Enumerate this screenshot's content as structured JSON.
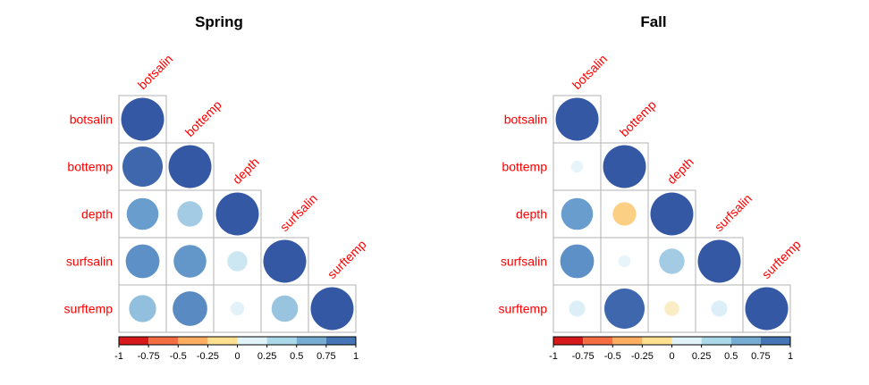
{
  "chart_data": [
    {
      "type": "heatmap",
      "title": "Spring",
      "variables": [
        "botsalin",
        "bottemp",
        "depth",
        "surfsalin",
        "surftemp"
      ],
      "matrix": [
        [
          1.0,
          0.88,
          0.55,
          0.62,
          0.4
        ],
        [
          0.88,
          1.0,
          0.35,
          0.58,
          0.65
        ],
        [
          0.55,
          0.35,
          1.0,
          0.22,
          0.1
        ],
        [
          0.62,
          0.58,
          0.22,
          1.0,
          0.38
        ],
        [
          0.4,
          0.65,
          0.1,
          0.38,
          1.0
        ]
      ]
    },
    {
      "type": "heatmap",
      "title": "Fall",
      "variables": [
        "botsalin",
        "bottemp",
        "depth",
        "surfsalin",
        "surftemp"
      ],
      "matrix": [
        [
          1.0,
          0.08,
          0.55,
          0.62,
          0.14
        ],
        [
          0.08,
          1.0,
          -0.3,
          0.08,
          0.88
        ],
        [
          0.55,
          -0.3,
          1.0,
          0.35,
          -0.12
        ],
        [
          0.62,
          0.08,
          0.35,
          1.0,
          0.14
        ],
        [
          0.14,
          0.88,
          -0.12,
          0.14,
          1.0
        ]
      ]
    }
  ],
  "colorbar": {
    "ticks": [
      "-1",
      "-0.75",
      "-0.5",
      "-0.25",
      "0",
      "0.25",
      "0.5",
      "0.75",
      "1"
    ],
    "values": [
      -1,
      -0.75,
      -0.5,
      -0.25,
      0,
      0.25,
      0.5,
      0.75
    ],
    "colors": [
      "#d7191c",
      "#f46d43",
      "#fdae61",
      "#fee090",
      "#e0f3f8",
      "#abd9e9",
      "#74add1",
      "#4575b4"
    ]
  },
  "colors": {
    "label": "#ff0000",
    "cell_border": "#b3b3b3",
    "strong_positive": "#3b5fa8"
  }
}
